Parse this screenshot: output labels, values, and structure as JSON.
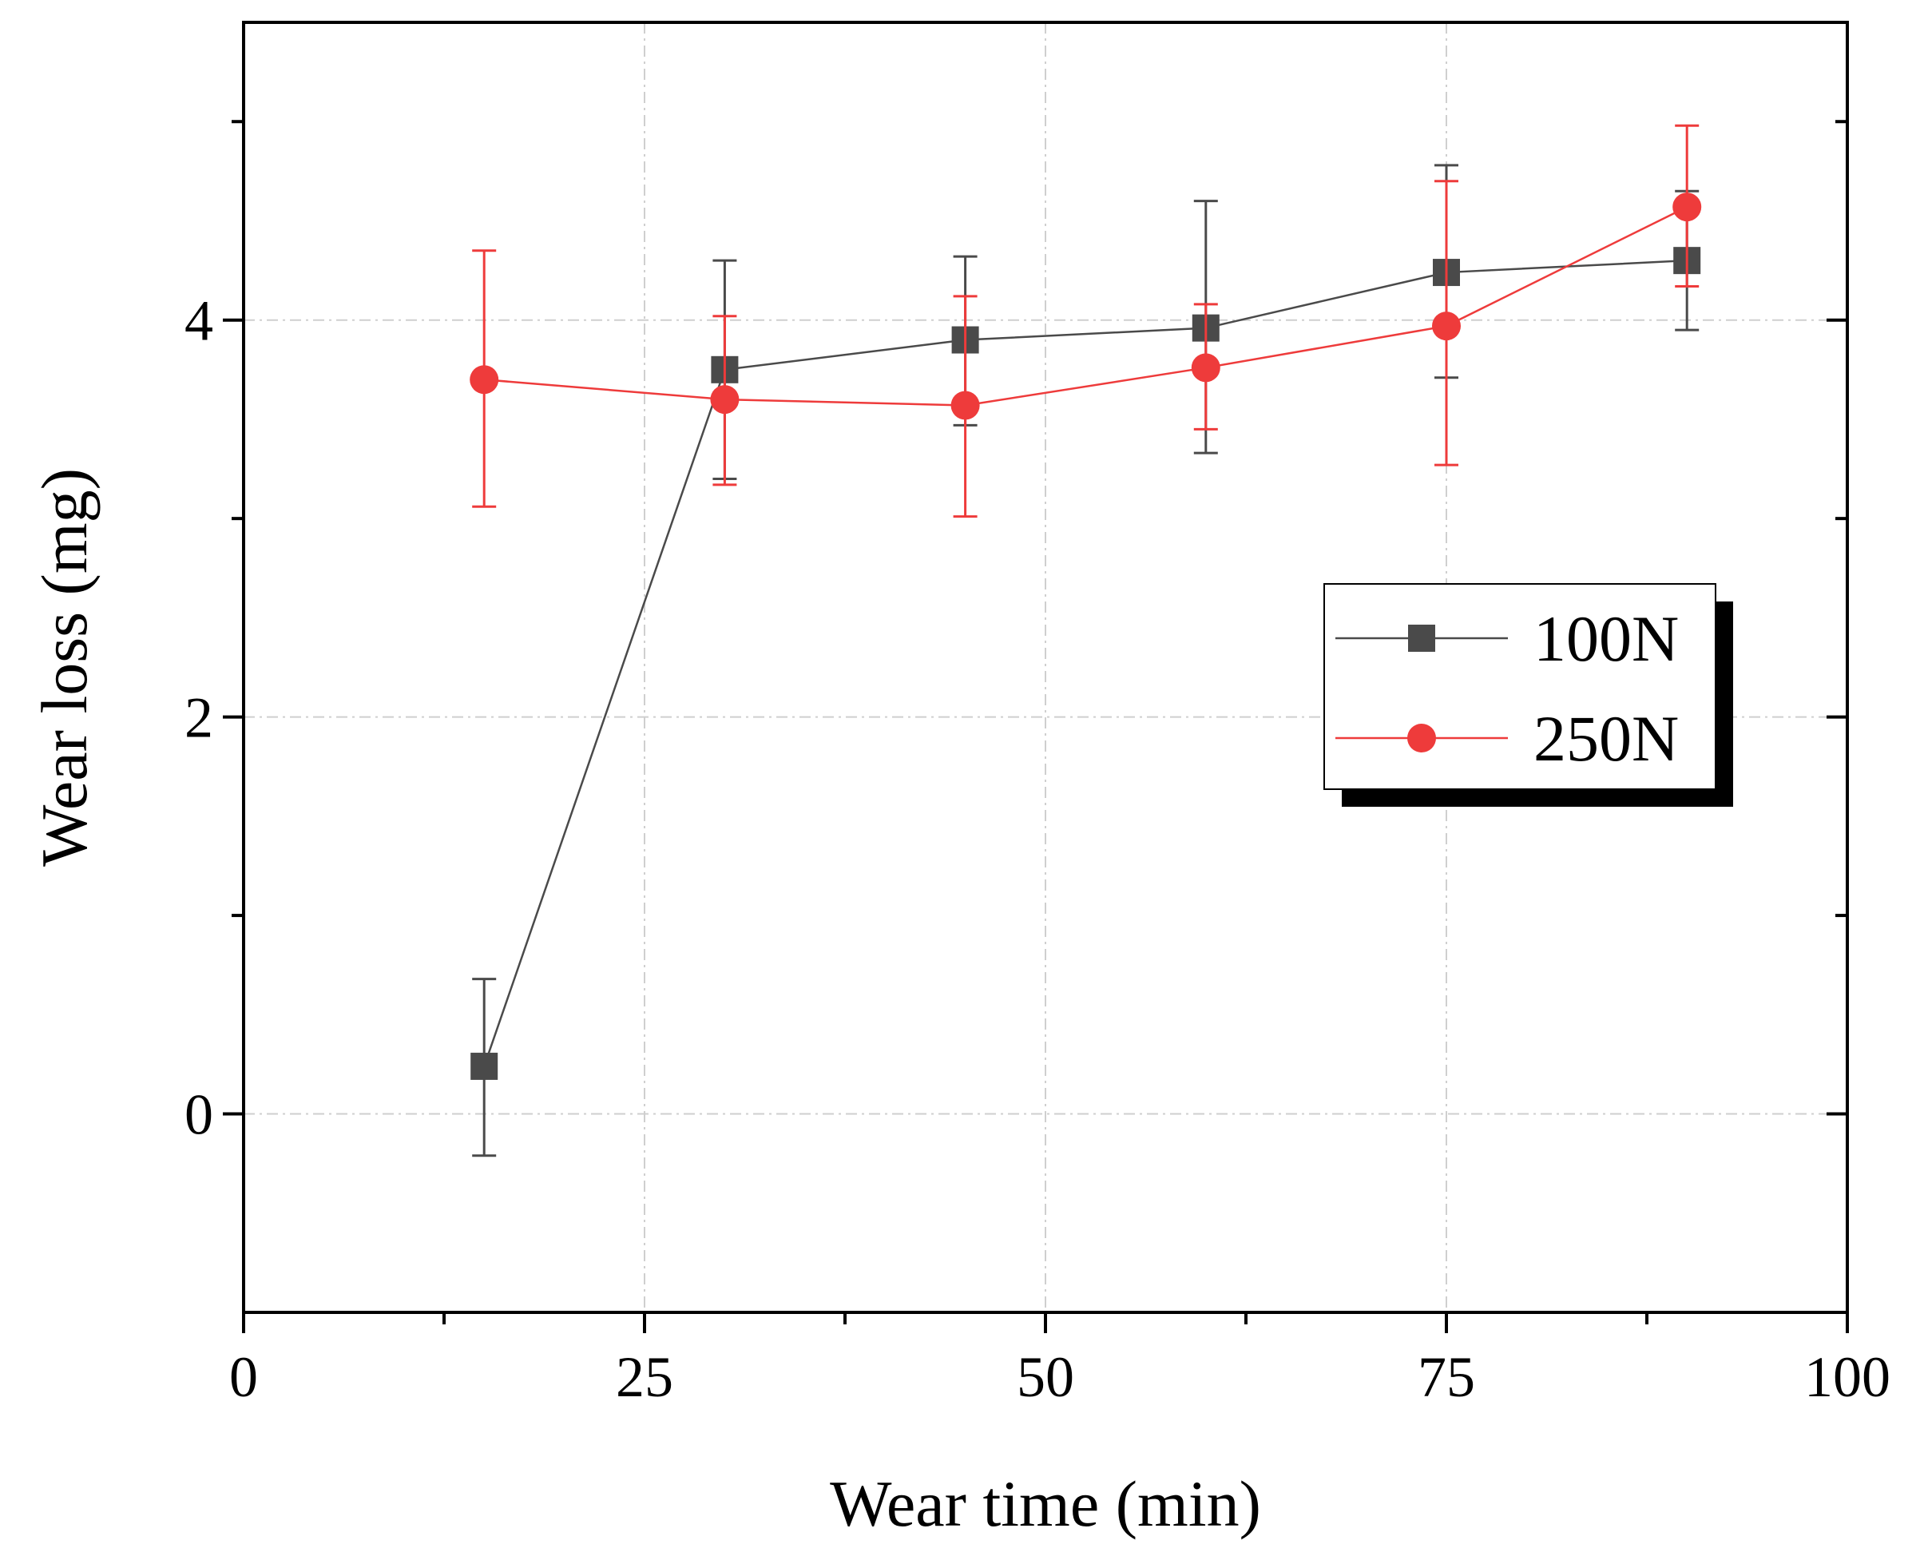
{
  "chart_data": {
    "type": "line",
    "title": "",
    "xlabel": "Wear time (min)",
    "ylabel": "Wear loss (mg)",
    "xlim": [
      0,
      100
    ],
    "ylim": [
      -1,
      5.5
    ],
    "x_ticks": [
      0,
      25,
      50,
      75,
      100
    ],
    "x_tick_labels": [
      "0",
      "25",
      "50",
      "75",
      "100"
    ],
    "x_minor_ticks": [
      12.5,
      37.5,
      62.5,
      87.5
    ],
    "y_ticks": [
      0,
      2,
      4
    ],
    "y_tick_labels": [
      "0",
      "2",
      "4"
    ],
    "y_minor_ticks": [
      1,
      3,
      5
    ],
    "grid": true,
    "legend_position": "middle-right",
    "series": [
      {
        "name": "100N",
        "color": "#4a4a4a",
        "marker": "square",
        "x": [
          15,
          30,
          45,
          60,
          75,
          90
        ],
        "values": [
          0.24,
          3.75,
          3.9,
          3.96,
          4.24,
          4.3
        ],
        "err_low": [
          -0.21,
          3.2,
          3.47,
          3.33,
          3.71,
          3.95
        ],
        "err_high": [
          0.68,
          4.3,
          4.32,
          4.6,
          4.78,
          4.65
        ]
      },
      {
        "name": "250N",
        "color": "#ee3b3b",
        "marker": "circle",
        "x": [
          15,
          30,
          45,
          60,
          75,
          90
        ],
        "values": [
          3.7,
          3.6,
          3.57,
          3.76,
          3.97,
          4.57
        ],
        "err_low": [
          3.06,
          3.17,
          3.01,
          3.45,
          3.27,
          4.17
        ],
        "err_high": [
          4.35,
          4.02,
          4.12,
          4.08,
          4.7,
          4.98
        ]
      }
    ]
  }
}
